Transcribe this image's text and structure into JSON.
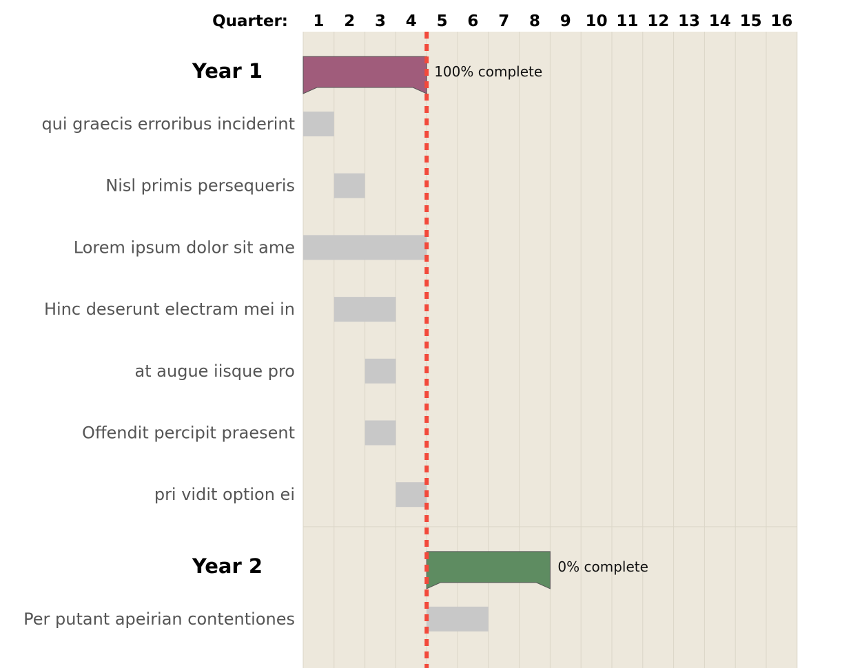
{
  "chart_data": {
    "type": "gantt",
    "header_label": "Quarter:",
    "quarters": [
      "1",
      "2",
      "3",
      "4",
      "5",
      "6",
      "7",
      "8",
      "9",
      "10",
      "11",
      "12",
      "13",
      "14",
      "15",
      "16"
    ],
    "today_marker": 5,
    "groups": [
      {
        "label": "Year 1",
        "start": 1,
        "end": 5,
        "complete_text": "100% complete",
        "complete": 100,
        "color": "#a05c7b",
        "tasks": [
          {
            "label": "qui graecis erroribus inciderint",
            "start": 1,
            "end": 2
          },
          {
            "label": "Nisl primis persequeris",
            "start": 2,
            "end": 3
          },
          {
            "label": "Lorem ipsum dolor sit ame",
            "start": 1,
            "end": 5
          },
          {
            "label": "Hinc deserunt electram mei in",
            "start": 2,
            "end": 4
          },
          {
            "label": "at augue iisque pro",
            "start": 3,
            "end": 4
          },
          {
            "label": "Offendit percipit praesent",
            "start": 3,
            "end": 4
          },
          {
            "label": "pri vidit option ei",
            "start": 4,
            "end": 5
          }
        ]
      },
      {
        "label": "Year 2",
        "start": 5,
        "end": 9,
        "complete_text": "0% complete",
        "complete": 0,
        "color": "#5e8c61",
        "tasks": [
          {
            "label": "Per putant apeirian contentiones",
            "start": 5,
            "end": 7
          }
        ]
      }
    ],
    "colors": {
      "background": "#ede8dc",
      "grid": "#dbd6c8",
      "task_bar": "#c8c8c8",
      "today_line": "#f2493b",
      "group_outline": "#555555"
    }
  }
}
